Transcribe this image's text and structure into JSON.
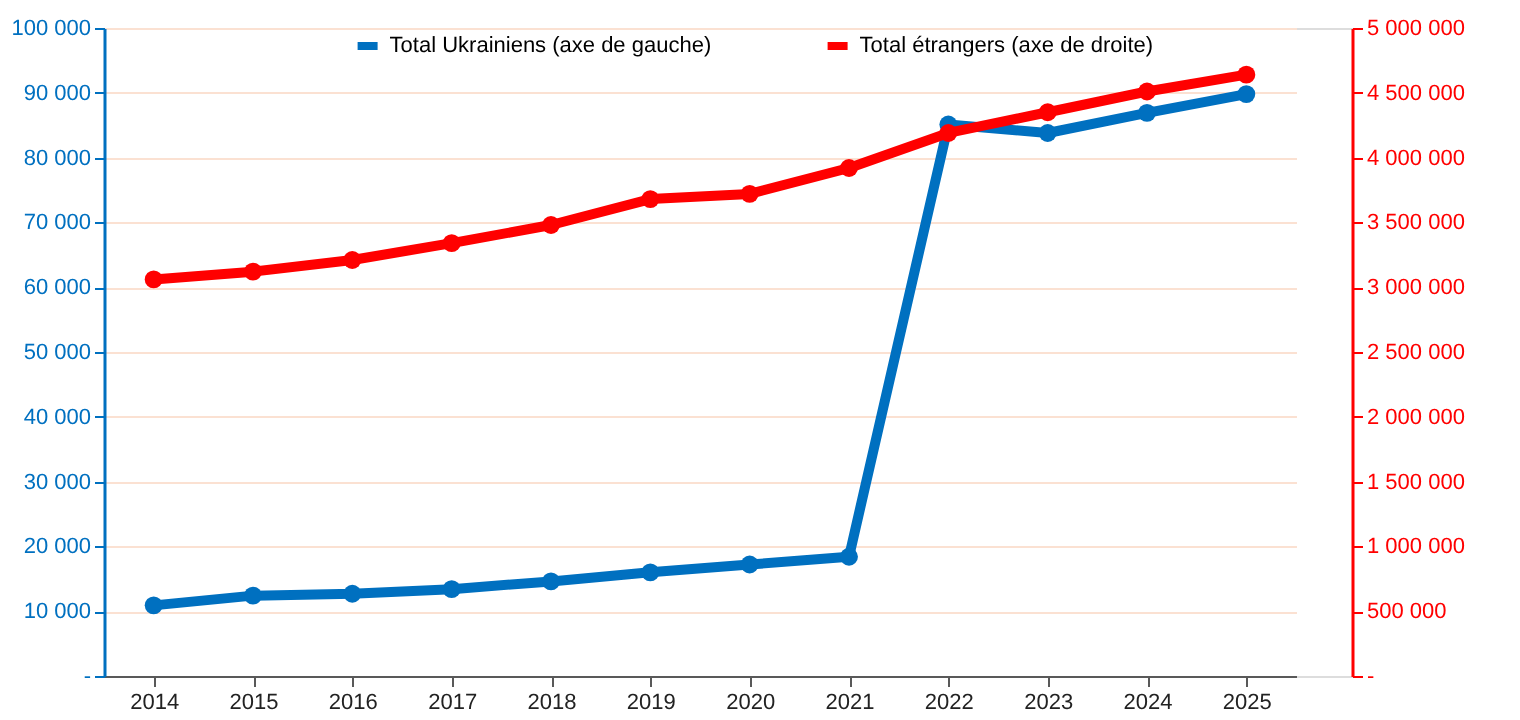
{
  "chart_data": {
    "type": "line",
    "categories": [
      "2014",
      "2015",
      "2016",
      "2017",
      "2018",
      "2019",
      "2020",
      "2021",
      "2022",
      "2023",
      "2024",
      "2025"
    ],
    "series": [
      {
        "name": "Total Ukrainiens (axe de gauche)",
        "color": "#0070c0",
        "values": [
          10900,
          12400,
          12700,
          13400,
          14600,
          16000,
          17200,
          18400,
          85100,
          83800,
          86900,
          89800
        ]
      },
      {
        "name": "Total étrangers (axe de droite)",
        "color": "#ff0000",
        "axis": "y2",
        "values": [
          3060000,
          3120000,
          3210000,
          3340000,
          3480000,
          3680000,
          3720000,
          3920000,
          4190000,
          4350000,
          4510000,
          4640000
        ]
      }
    ],
    "ylim": [
      0,
      100000
    ],
    "yticks": [
      {
        "value": 0,
        "label": "-"
      },
      {
        "value": 10000,
        "label": "10 000"
      },
      {
        "value": 20000,
        "label": "20 000"
      },
      {
        "value": 30000,
        "label": "30 000"
      },
      {
        "value": 40000,
        "label": "40 000"
      },
      {
        "value": 50000,
        "label": "50 000"
      },
      {
        "value": 60000,
        "label": "60 000"
      },
      {
        "value": 70000,
        "label": "70 000"
      },
      {
        "value": 80000,
        "label": "80 000"
      },
      {
        "value": 90000,
        "label": "90 000"
      },
      {
        "value": 100000,
        "label": "100 000"
      }
    ],
    "y2lim": [
      0,
      5000000
    ],
    "y2ticks": [
      {
        "value": 0,
        "label": "-"
      },
      {
        "value": 500000,
        "label": "500 000"
      },
      {
        "value": 1000000,
        "label": "1 000 000"
      },
      {
        "value": 1500000,
        "label": "1 500 000"
      },
      {
        "value": 2000000,
        "label": "2 000 000"
      },
      {
        "value": 2500000,
        "label": "2 500 000"
      },
      {
        "value": 3000000,
        "label": "3 000 000"
      },
      {
        "value": 3500000,
        "label": "3 500 000"
      },
      {
        "value": 4000000,
        "label": "4 000 000"
      },
      {
        "value": 4500000,
        "label": "4 500 000"
      },
      {
        "value": 5000000,
        "label": "5 000 000"
      }
    ],
    "grid": "y",
    "legend": "top",
    "marker": "circle",
    "line_style": "solid"
  }
}
